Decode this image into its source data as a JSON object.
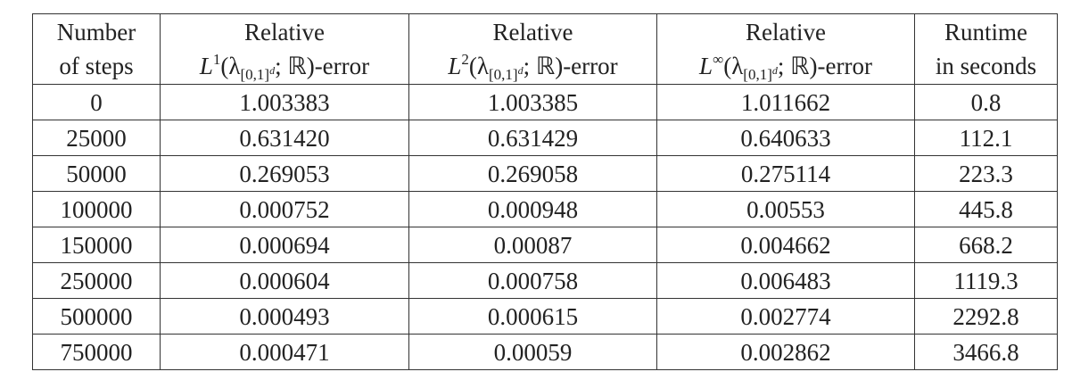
{
  "table": {
    "header": [
      {
        "lines": [
          [
            {
              "text": "Number"
            }
          ],
          [
            {
              "text": "of steps"
            }
          ]
        ]
      },
      {
        "lines": [
          [
            {
              "text": "Relative"
            }
          ],
          [
            {
              "text": "L"
            },
            {
              "sup": "1"
            },
            {
              "text": "(λ"
            },
            {
              "sub": "[0,1]"
            },
            {
              "subsup": "d"
            },
            {
              "text": "; ℝ)-error"
            }
          ]
        ]
      },
      {
        "lines": [
          [
            {
              "text": "Relative"
            }
          ],
          [
            {
              "text": "L"
            },
            {
              "sup": "2"
            },
            {
              "text": "(λ"
            },
            {
              "sub": "[0,1]"
            },
            {
              "subsup": "d"
            },
            {
              "text": "; ℝ)-error"
            }
          ]
        ]
      },
      {
        "lines": [
          [
            {
              "text": "Relative"
            }
          ],
          [
            {
              "text": "L"
            },
            {
              "sup": "∞"
            },
            {
              "text": "(λ"
            },
            {
              "sub": "[0,1]"
            },
            {
              "subsup": "d"
            },
            {
              "text": "; ℝ)-error"
            }
          ]
        ]
      },
      {
        "lines": [
          [
            {
              "text": "Runtime"
            }
          ],
          [
            {
              "text": "in seconds"
            }
          ]
        ]
      }
    ],
    "rows": [
      [
        "0",
        "1.003383",
        "1.003385",
        "1.011662",
        "0.8"
      ],
      [
        "25000",
        "0.631420",
        "0.631429",
        "0.640633",
        "112.1"
      ],
      [
        "50000",
        "0.269053",
        "0.269058",
        "0.275114",
        "223.3"
      ],
      [
        "100000",
        "0.000752",
        "0.000948",
        "0.00553",
        "445.8"
      ],
      [
        "150000",
        "0.000694",
        "0.00087",
        "0.004662",
        "668.2"
      ],
      [
        "250000",
        "0.000604",
        "0.000758",
        "0.006483",
        "1119.3"
      ],
      [
        "500000",
        "0.000493",
        "0.000615",
        "0.002774",
        "2292.8"
      ],
      [
        "750000",
        "0.000471",
        "0.00059",
        "0.002862",
        "3466.8"
      ]
    ]
  }
}
